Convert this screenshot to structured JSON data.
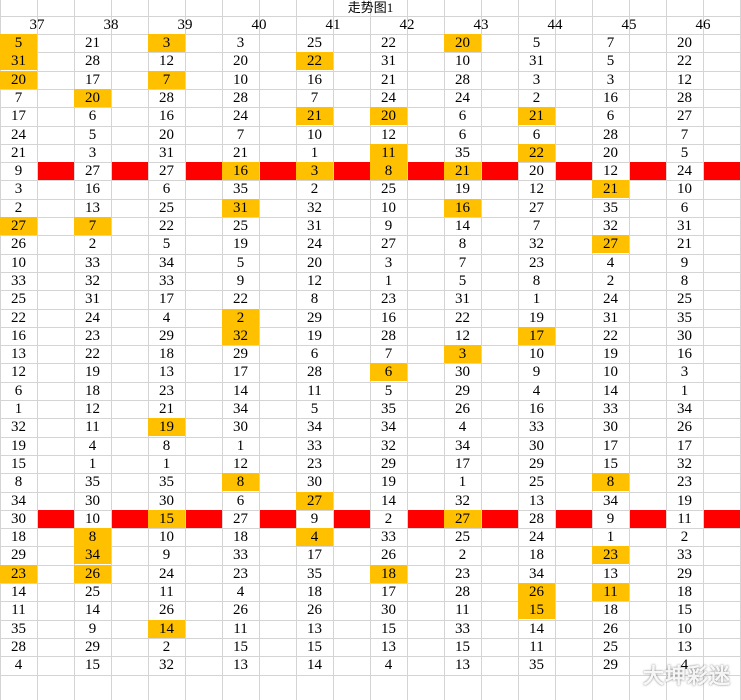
{
  "sheet": {
    "title": "走势图1",
    "watermark": "大坤彩迷",
    "colors": {
      "highlight": "#ffc000",
      "separator": "#ff0000",
      "grid": "#d4d4d4"
    },
    "columns": [
      "37",
      "38",
      "39",
      "40",
      "41",
      "42",
      "43",
      "44",
      "45",
      "46"
    ],
    "rows": [
      [
        "5",
        "21",
        "3",
        "3",
        "25",
        "22",
        "20",
        "5",
        "7",
        "20"
      ],
      [
        "31",
        "28",
        "12",
        "20",
        "22",
        "31",
        "10",
        "31",
        "5",
        "22"
      ],
      [
        "20",
        "17",
        "7",
        "10",
        "16",
        "21",
        "28",
        "3",
        "3",
        "12"
      ],
      [
        "7",
        "20",
        "28",
        "28",
        "7",
        "24",
        "24",
        "2",
        "16",
        "28"
      ],
      [
        "17",
        "6",
        "16",
        "24",
        "21",
        "20",
        "6",
        "21",
        "6",
        "27"
      ],
      [
        "24",
        "5",
        "20",
        "7",
        "10",
        "12",
        "6",
        "6",
        "28",
        "7"
      ],
      [
        "21",
        "3",
        "31",
        "21",
        "1",
        "11",
        "35",
        "22",
        "20",
        "5"
      ],
      [
        "9",
        "27",
        "27",
        "16",
        "3",
        "8",
        "21",
        "20",
        "12",
        "24"
      ],
      [
        "3",
        "16",
        "6",
        "35",
        "2",
        "25",
        "19",
        "12",
        "21",
        "10"
      ],
      [
        "2",
        "13",
        "25",
        "31",
        "32",
        "10",
        "16",
        "27",
        "35",
        "6"
      ],
      [
        "27",
        "7",
        "22",
        "25",
        "31",
        "9",
        "14",
        "7",
        "32",
        "31"
      ],
      [
        "26",
        "2",
        "5",
        "19",
        "24",
        "27",
        "8",
        "32",
        "27",
        "21"
      ],
      [
        "10",
        "33",
        "34",
        "5",
        "20",
        "3",
        "7",
        "23",
        "4",
        "9"
      ],
      [
        "33",
        "32",
        "33",
        "9",
        "12",
        "1",
        "5",
        "8",
        "2",
        "8"
      ],
      [
        "25",
        "31",
        "17",
        "22",
        "8",
        "23",
        "31",
        "1",
        "24",
        "25"
      ],
      [
        "22",
        "24",
        "4",
        "2",
        "29",
        "16",
        "22",
        "19",
        "31",
        "35"
      ],
      [
        "16",
        "23",
        "29",
        "32",
        "19",
        "28",
        "12",
        "17",
        "22",
        "30"
      ],
      [
        "13",
        "22",
        "18",
        "29",
        "6",
        "7",
        "3",
        "10",
        "19",
        "16"
      ],
      [
        "12",
        "19",
        "13",
        "17",
        "28",
        "6",
        "30",
        "9",
        "10",
        "3"
      ],
      [
        "6",
        "18",
        "23",
        "14",
        "11",
        "5",
        "29",
        "4",
        "14",
        "1"
      ],
      [
        "1",
        "12",
        "21",
        "34",
        "5",
        "35",
        "26",
        "16",
        "33",
        "34"
      ],
      [
        "32",
        "11",
        "19",
        "30",
        "34",
        "34",
        "4",
        "33",
        "30",
        "26"
      ],
      [
        "19",
        "4",
        "8",
        "1",
        "33",
        "32",
        "34",
        "30",
        "17",
        "17"
      ],
      [
        "15",
        "1",
        "1",
        "12",
        "23",
        "29",
        "17",
        "29",
        "15",
        "32"
      ],
      [
        "8",
        "35",
        "35",
        "8",
        "30",
        "19",
        "1",
        "25",
        "8",
        "23"
      ],
      [
        "34",
        "30",
        "30",
        "6",
        "27",
        "14",
        "32",
        "13",
        "34",
        "19"
      ],
      [
        "30",
        "10",
        "15",
        "27",
        "9",
        "2",
        "27",
        "28",
        "9",
        "11"
      ],
      [
        "18",
        "8",
        "10",
        "18",
        "4",
        "33",
        "25",
        "24",
        "1",
        "2"
      ],
      [
        "29",
        "34",
        "9",
        "33",
        "17",
        "26",
        "2",
        "18",
        "23",
        "33"
      ],
      [
        "23",
        "26",
        "24",
        "23",
        "35",
        "18",
        "23",
        "34",
        "13",
        "29"
      ],
      [
        "14",
        "25",
        "11",
        "4",
        "18",
        "17",
        "28",
        "26",
        "11",
        "18"
      ],
      [
        "11",
        "14",
        "26",
        "26",
        "26",
        "30",
        "11",
        "15",
        "18",
        "15"
      ],
      [
        "35",
        "9",
        "14",
        "11",
        "13",
        "15",
        "33",
        "14",
        "26",
        "10"
      ],
      [
        "28",
        "29",
        "2",
        "15",
        "15",
        "13",
        "15",
        "11",
        "25",
        "13"
      ],
      [
        "4",
        "15",
        "32",
        "13",
        "14",
        "4",
        "13",
        "35",
        "29",
        "4"
      ]
    ],
    "highlights": [
      [
        0,
        0
      ],
      [
        0,
        2
      ],
      [
        0,
        6
      ],
      [
        1,
        0
      ],
      [
        1,
        4
      ],
      [
        2,
        0
      ],
      [
        2,
        2
      ],
      [
        3,
        1
      ],
      [
        4,
        4
      ],
      [
        4,
        5
      ],
      [
        4,
        7
      ],
      [
        6,
        5
      ],
      [
        6,
        7
      ],
      [
        7,
        3
      ],
      [
        7,
        4
      ],
      [
        7,
        5
      ],
      [
        7,
        6
      ],
      [
        8,
        8
      ],
      [
        9,
        3
      ],
      [
        9,
        6
      ],
      [
        10,
        0
      ],
      [
        10,
        1
      ],
      [
        11,
        8
      ],
      [
        15,
        3
      ],
      [
        16,
        3
      ],
      [
        16,
        7
      ],
      [
        17,
        6
      ],
      [
        18,
        5
      ],
      [
        21,
        2
      ],
      [
        24,
        3
      ],
      [
        24,
        8
      ],
      [
        25,
        4
      ],
      [
        26,
        2
      ],
      [
        26,
        6
      ],
      [
        27,
        1
      ],
      [
        27,
        4
      ],
      [
        28,
        1
      ],
      [
        28,
        8
      ],
      [
        29,
        0
      ],
      [
        29,
        1
      ],
      [
        29,
        5
      ],
      [
        30,
        7
      ],
      [
        30,
        8
      ],
      [
        31,
        7
      ],
      [
        32,
        2
      ]
    ],
    "separator_rows": [
      7,
      26
    ]
  }
}
